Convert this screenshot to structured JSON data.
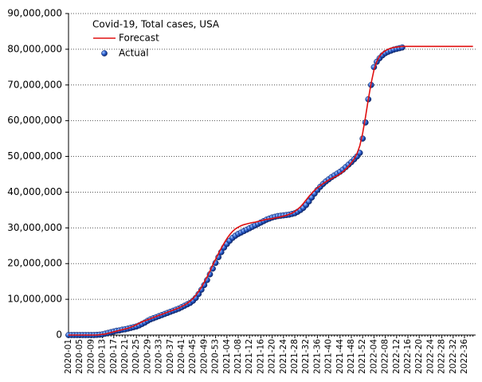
{
  "chart_data": {
    "type": "line",
    "title": "Covid-19, Total cases, USA",
    "categories": [
      "2020-01",
      null,
      null,
      null,
      "2020-05",
      null,
      null,
      null,
      "2020-09",
      null,
      null,
      null,
      "2020-13",
      null,
      null,
      null,
      "2020-17",
      null,
      null,
      null,
      "2020-21",
      null,
      null,
      null,
      "2020-25",
      null,
      null,
      null,
      "2020-29",
      null,
      null,
      null,
      "2020-33",
      null,
      null,
      null,
      "2020-37",
      null,
      null,
      null,
      "2020-41",
      null,
      null,
      null,
      "2020-45",
      null,
      null,
      null,
      "2020-49",
      null,
      null,
      null,
      "2020-53",
      null,
      null,
      null,
      "2021-04",
      null,
      null,
      null,
      "2021-08",
      null,
      null,
      null,
      "2021-12",
      null,
      null,
      null,
      "2021-16",
      null,
      null,
      null,
      "2021-20",
      null,
      null,
      null,
      "2021-24",
      null,
      null,
      null,
      "2021-28",
      null,
      null,
      null,
      "2021-32",
      null,
      null,
      null,
      "2021-36",
      null,
      null,
      null,
      "2021-40",
      null,
      null,
      null,
      "2021-44",
      null,
      null,
      null,
      "2021-48",
      null,
      null,
      null,
      "2021-52",
      null,
      null,
      null,
      "2022-04",
      null,
      null,
      null,
      "2022-08",
      null,
      null,
      null,
      "2022-12",
      null,
      null,
      null,
      "2022-16",
      null,
      null,
      null,
      "2022-20",
      null,
      null,
      null,
      "2022-24",
      null,
      null,
      null,
      "2022-28",
      null,
      null,
      null,
      "2022-32",
      null,
      null,
      null,
      "2022-36",
      null,
      null,
      null
    ],
    "series": [
      {
        "name": "Forecast",
        "color": "#e01010",
        "mode": "line",
        "values": [
          0,
          0,
          0,
          0,
          0,
          0,
          0,
          0,
          0,
          0,
          0,
          100000,
          200000,
          300000,
          500000,
          700000,
          900000,
          1100000,
          1300000,
          1500000,
          1700000,
          1900000,
          2200000,
          2500000,
          2900000,
          3300000,
          3700000,
          4000000,
          4300000,
          4600000,
          4900000,
          5200000,
          5500000,
          5800000,
          6100000,
          6400000,
          6700000,
          7000000,
          7300000,
          7600000,
          8000000,
          8400000,
          8900000,
          9500000,
          10200000,
          11100000,
          12200000,
          13400000,
          14800000,
          16300000,
          17900000,
          19600000,
          21200000,
          22800000,
          24300000,
          25700000,
          27000000,
          28100000,
          29000000,
          29700000,
          30200000,
          30600000,
          30900000,
          31100000,
          31300000,
          31500000,
          31600000,
          31800000,
          32000000,
          32200000,
          32400000,
          32500000,
          32600000,
          32800000,
          32900000,
          33100000,
          33300000,
          33500000,
          33800000,
          34100000,
          34600000,
          35200000,
          35900000,
          36800000,
          37800000,
          38800000,
          39700000,
          40500000,
          41200000,
          41800000,
          42400000,
          42900000,
          43400000,
          43800000,
          44200000,
          44600000,
          45100000,
          45700000,
          46400000,
          47200000,
          48200000,
          49300000,
          50800000,
          53000000,
          56500000,
          61000000,
          66000000,
          70500000,
          74200000,
          76600000,
          78100000,
          79000000,
          79600000,
          80000000,
          80300000,
          80500000,
          80600000,
          80700000,
          80800000,
          80800000,
          80800000,
          80800000,
          80800000,
          80800000,
          80800000,
          80800000,
          80800000,
          80800000,
          80800000,
          80800000,
          80800000,
          80800000,
          80800000,
          80800000,
          80800000,
          80800000,
          80800000,
          80800000,
          80800000,
          80800000,
          80800000,
          80800000,
          80800000,
          80800000
        ]
      },
      {
        "name": "Actual",
        "color": "#1f5fd0",
        "mode": "markers",
        "values": [
          0,
          0,
          0,
          0,
          0,
          0,
          0,
          0,
          0,
          0,
          50000,
          100000,
          200000,
          400000,
          600000,
          800000,
          1000000,
          1200000,
          1300000,
          1500000,
          1600000,
          1800000,
          2000000,
          2200000,
          2400000,
          2700000,
          3100000,
          3500000,
          4000000,
          4400000,
          4700000,
          5000000,
          5300000,
          5600000,
          5900000,
          6200000,
          6500000,
          6800000,
          7100000,
          7400000,
          7800000,
          8200000,
          8600000,
          9000000,
          9600000,
          10400000,
          11500000,
          12700000,
          14000000,
          15400000,
          17000000,
          18600000,
          20200000,
          21800000,
          23200000,
          24500000,
          25500000,
          26400000,
          27200000,
          27800000,
          28300000,
          28700000,
          29100000,
          29500000,
          29900000,
          30300000,
          30700000,
          31100000,
          31500000,
          31900000,
          32300000,
          32600000,
          32900000,
          33100000,
          33300000,
          33400000,
          33500000,
          33600000,
          33700000,
          33900000,
          34100000,
          34500000,
          35000000,
          35600000,
          36400000,
          37400000,
          38500000,
          39600000,
          40600000,
          41500000,
          42300000,
          43000000,
          43600000,
          44200000,
          44700000,
          45200000,
          45700000,
          46300000,
          47000000,
          47700000,
          48400000,
          49200000,
          50000000,
          51000000,
          55000000,
          59500000,
          66000000,
          70000000,
          75000000,
          76500000,
          77500000,
          78300000,
          78900000,
          79300000,
          79600000,
          79900000,
          80100000,
          80300000,
          80500000,
          null,
          null,
          null,
          null,
          null,
          null,
          null,
          null,
          null,
          null,
          null,
          null,
          null,
          null,
          null,
          null,
          null,
          null,
          null,
          null,
          null,
          null,
          null,
          null,
          null
        ]
      }
    ],
    "ylim": [
      0,
      90000000
    ],
    "yticks": [
      {
        "value": 0,
        "label": "0"
      },
      {
        "value": 10000000,
        "label": "10,000,000"
      },
      {
        "value": 20000000,
        "label": "20,000,000"
      },
      {
        "value": 30000000,
        "label": "30,000,000"
      },
      {
        "value": 40000000,
        "label": "40,000,000"
      },
      {
        "value": 50000000,
        "label": "50,000,000"
      },
      {
        "value": 60000000,
        "label": "60,000,000"
      },
      {
        "value": 70000000,
        "label": "70,000,000"
      },
      {
        "value": 80000000,
        "label": "80,000,000"
      },
      {
        "value": 90000000,
        "label": "90,000,000"
      }
    ],
    "grid": true,
    "legend": "top-left"
  }
}
